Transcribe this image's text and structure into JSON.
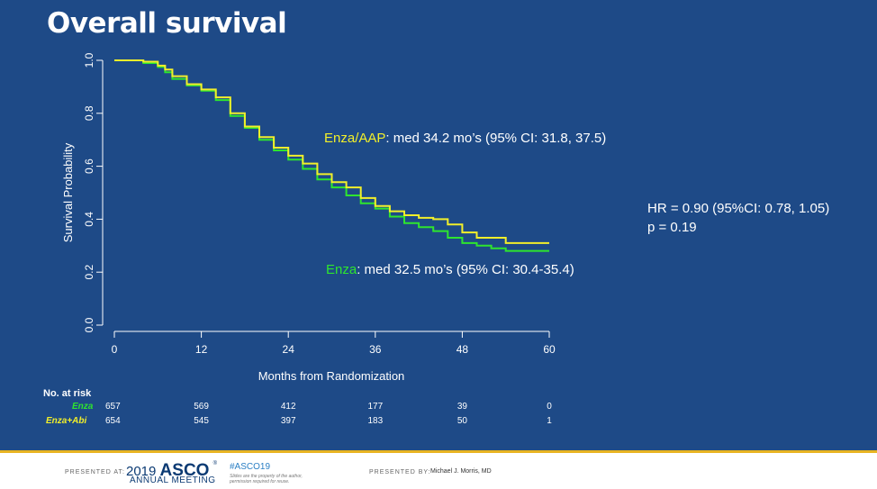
{
  "slide": {
    "title": "Overall survival"
  },
  "chart_data": {
    "type": "line",
    "xlabel": "Months from Randomization",
    "ylabel": "Survival Probability",
    "xlim": [
      0,
      60
    ],
    "ylim": [
      0,
      1
    ],
    "x_ticks": [
      "0",
      "12",
      "24",
      "36",
      "48",
      "60"
    ],
    "y_ticks": [
      "0.0",
      "0.2",
      "0.4",
      "0.6",
      "0.8",
      "1.0"
    ],
    "series": [
      {
        "name": "Enza/AAP",
        "color": "#f2ef2a",
        "x": [
          0,
          2,
          4,
          6,
          7,
          8,
          10,
          12,
          14,
          16,
          18,
          20,
          22,
          24,
          26,
          28,
          30,
          32,
          34,
          36,
          38,
          40,
          42,
          44,
          46,
          48,
          50,
          52,
          54,
          56,
          58,
          60
        ],
        "y": [
          1.0,
          1.0,
          0.995,
          0.98,
          0.965,
          0.94,
          0.91,
          0.89,
          0.86,
          0.8,
          0.75,
          0.71,
          0.67,
          0.64,
          0.61,
          0.57,
          0.54,
          0.52,
          0.48,
          0.45,
          0.43,
          0.415,
          0.405,
          0.4,
          0.38,
          0.35,
          0.33,
          0.33,
          0.31,
          0.31,
          0.31,
          0.31
        ]
      },
      {
        "name": "Enza",
        "color": "#2ee52e",
        "x": [
          0,
          2,
          4,
          6,
          7,
          8,
          10,
          12,
          14,
          16,
          18,
          20,
          22,
          24,
          26,
          28,
          30,
          32,
          34,
          36,
          38,
          40,
          42,
          44,
          46,
          48,
          50,
          52,
          54,
          56,
          58,
          60
        ],
        "y": [
          1.0,
          1.0,
          0.99,
          0.975,
          0.955,
          0.93,
          0.905,
          0.885,
          0.85,
          0.79,
          0.745,
          0.7,
          0.66,
          0.625,
          0.59,
          0.55,
          0.52,
          0.49,
          0.46,
          0.44,
          0.41,
          0.385,
          0.37,
          0.355,
          0.33,
          0.31,
          0.3,
          0.29,
          0.28,
          0.28,
          0.28,
          0.28
        ]
      }
    ],
    "annotations": {
      "enza_aap": {
        "name": "Enza/AAP",
        "rest": ": med 34.2 mo’s (95% CI: 31.8, 37.5)"
      },
      "enza": {
        "name": "Enza",
        "rest": ": med 32.5 mo’s (95% CI: 30.4-35.4)"
      },
      "hr": "HR = 0.90 (95%CI: 0.78, 1.05)",
      "p": "p = 0.19"
    },
    "risk_table": {
      "header": "No. at risk",
      "rows": [
        {
          "label": "Enza",
          "color": "#2ee52e",
          "values": [
            "657",
            "569",
            "412",
            "177",
            "39",
            "0"
          ]
        },
        {
          "label": "Enza+Abi",
          "color": "#f2ef2a",
          "values": [
            "654",
            "545",
            "397",
            "183",
            "50",
            "1"
          ]
        }
      ]
    }
  },
  "footer": {
    "presented_at": "PRESENTED AT:",
    "year": "2019",
    "asco": "ASCO",
    "meeting": "ANNUAL MEETING",
    "hashtag": "#ASCO19",
    "note": "Slides are the property of the author, permission required for reuse.",
    "presented_by": "PRESENTED BY:",
    "presenter": "Michael J. Morris, MD"
  }
}
